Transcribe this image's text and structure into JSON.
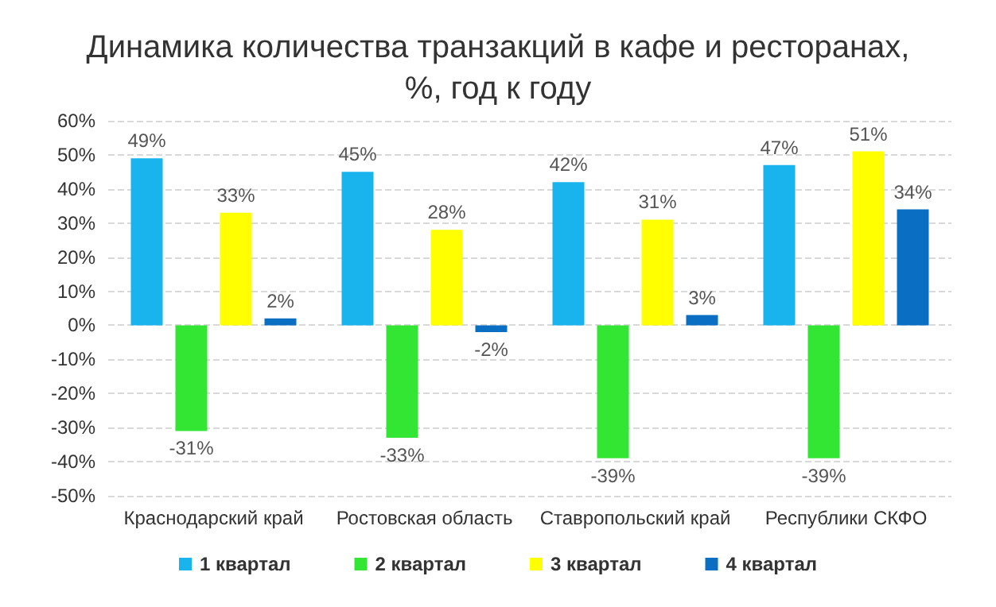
{
  "chart_data": {
    "type": "bar",
    "title": "Динамика количества транзакций в кафе и ресторанах,\n%, год к году",
    "categories": [
      "Краснодарский край",
      "Ростовская область",
      "Ставропольский край",
      "Республики СКФО"
    ],
    "series": [
      {
        "name": "1 квартал",
        "color": "#19b4ee",
        "values": [
          49,
          45,
          42,
          47
        ],
        "value_labels": [
          "49%",
          "45%",
          "42%",
          "47%"
        ]
      },
      {
        "name": "2 квартал",
        "color": "#33e633",
        "values": [
          -31,
          -33,
          -39,
          -39
        ],
        "value_labels": [
          "-31%",
          "-33%",
          "-39%",
          "-39%"
        ]
      },
      {
        "name": "3 квартал",
        "color": "#ffff00",
        "values": [
          33,
          28,
          31,
          51
        ],
        "value_labels": [
          "33%",
          "28%",
          "31%",
          "51%"
        ]
      },
      {
        "name": "4 квартал",
        "color": "#0a6fc2",
        "values": [
          2,
          -2,
          3,
          34
        ],
        "value_labels": [
          "2%",
          "-2%",
          "3%",
          "34%"
        ]
      }
    ],
    "ylim": [
      -50,
      60
    ],
    "yticks": [
      {
        "value": -50,
        "label": "-50%"
      },
      {
        "value": -40,
        "label": "-40%"
      },
      {
        "value": -30,
        "label": "-30%"
      },
      {
        "value": -20,
        "label": "-20%"
      },
      {
        "value": -10,
        "label": "-10%"
      },
      {
        "value": 0,
        "label": "0%"
      },
      {
        "value": 10,
        "label": "10%"
      },
      {
        "value": 20,
        "label": "20%"
      },
      {
        "value": 30,
        "label": "30%"
      },
      {
        "value": 40,
        "label": "40%"
      },
      {
        "value": 50,
        "label": "50%"
      },
      {
        "value": 60,
        "label": "60%"
      }
    ],
    "grid": "y",
    "legend": "bottom"
  }
}
